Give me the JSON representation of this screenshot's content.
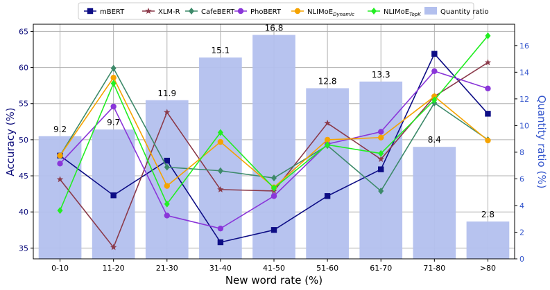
{
  "chart_data": {
    "type": "bar+line",
    "categories": [
      "0-10",
      "11-20",
      "21-30",
      "31-40",
      "41-50",
      "51-60",
      "61-70",
      "71-80",
      ">80"
    ],
    "xlabel": "New word rate (%)",
    "ylabel": "Accuracy (%)",
    "y2label": "Quantity ratio (%)",
    "ylim": [
      33.5,
      66
    ],
    "y2lim": [
      0,
      17.6
    ],
    "yticks": [
      35,
      40,
      45,
      50,
      55,
      60,
      65
    ],
    "y2ticks": [
      0,
      2,
      4,
      6,
      8,
      10,
      12,
      14,
      16
    ],
    "grid": true,
    "legend_position": "top",
    "bars": {
      "name": "Quantity ratio",
      "color": "#b3c0ee",
      "values": [
        9.2,
        9.7,
        11.9,
        15.1,
        16.8,
        12.8,
        13.3,
        8.4,
        2.8
      ],
      "labels": [
        "9.2",
        "9.7",
        "11.9",
        "15.1",
        "16.8",
        "12.8",
        "13.3",
        "8.4",
        "2.8"
      ]
    },
    "series": [
      {
        "name": "mBERT",
        "name_sub": "",
        "color": "#0d0d85",
        "marker": "square",
        "values": [
          47.8,
          42.3,
          47.1,
          35.8,
          37.5,
          42.2,
          45.9,
          61.9,
          53.6
        ]
      },
      {
        "name": "XLM-R",
        "name_sub": "",
        "color": "#8b3a4a",
        "marker": "star",
        "values": [
          44.5,
          35.1,
          53.8,
          43.1,
          42.9,
          52.3,
          47.3,
          56.0,
          60.7
        ]
      },
      {
        "name": "CafeBERT",
        "name_sub": "",
        "color": "#3d8a6a",
        "marker": "diamond",
        "values": [
          47.8,
          59.9,
          46.2,
          45.7,
          44.7,
          49.2,
          42.9,
          55.1,
          50.0
        ]
      },
      {
        "name": "PhoBERT",
        "name_sub": "",
        "color": "#8a36d9",
        "marker": "circle",
        "values": [
          46.7,
          54.6,
          39.5,
          37.7,
          42.2,
          49.4,
          51.1,
          59.5,
          57.1
        ]
      },
      {
        "name": "NLIMoE",
        "name_sub": "Dynamic",
        "color": "#f5a300",
        "marker": "circle",
        "values": [
          47.8,
          58.6,
          43.6,
          49.7,
          43.4,
          50.0,
          50.3,
          56.0,
          49.9
        ]
      },
      {
        "name": "NLIMoE",
        "name_sub": "TopK",
        "color": "#22ee22",
        "marker": "diamond",
        "values": [
          40.2,
          57.8,
          41.1,
          51.0,
          43.3,
          49.3,
          48.1,
          55.5,
          64.4
        ]
      }
    ]
  }
}
